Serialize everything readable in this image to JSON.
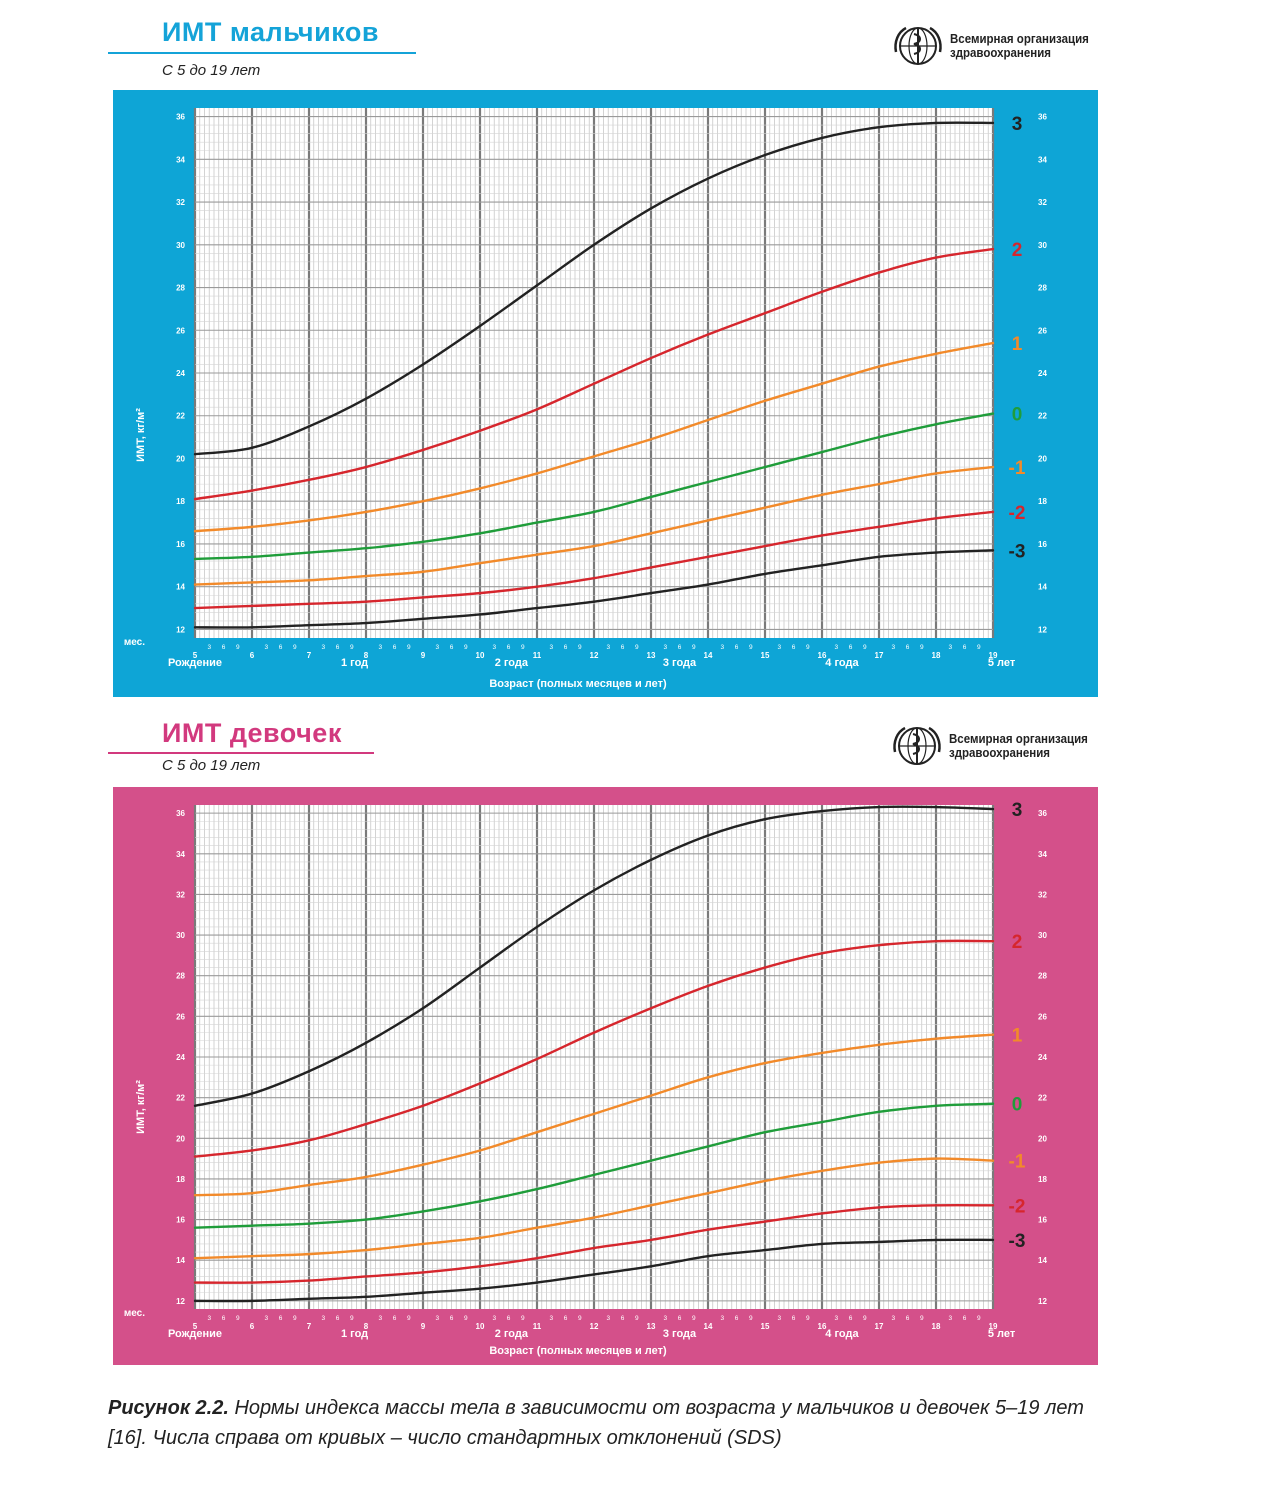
{
  "boys": {
    "title_prefix": "ИМТ",
    "title_suffix": "мальчиков",
    "subtitle": "С 5 до 19 лет",
    "who_line1": "Всемирная организация",
    "who_line2": "здравоохранения",
    "ylabel": "ИМТ, кг/м²",
    "xlabel": "Возраст (полных месяцев и лет)",
    "months_label": "мес.",
    "age_labels": [
      "Рождение",
      "1 год",
      "2 года",
      "3 года",
      "4 года",
      "5 лет"
    ],
    "colors": {
      "panel": "#0ea5d6",
      "title": "#14a3d8"
    }
  },
  "girls": {
    "title_prefix": "ИМТ",
    "title_suffix": "девочек",
    "subtitle": "С 5 до 19 лет",
    "who_line1": "Всемирная организация",
    "who_line2": "здравоохранения",
    "ylabel": "ИМТ, кг/м²",
    "xlabel": "Возраст (полных месяцев и лет)",
    "months_label": "мес.",
    "age_labels": [
      "Рождение",
      "1 год",
      "2 года",
      "3 года",
      "4 года",
      "5 лет"
    ],
    "colors": {
      "panel": "#d4508a",
      "title": "#d2397e"
    }
  },
  "caption": {
    "bold": "Рисунок 2.2.",
    "text": " Нормы индекса массы тела в зависимости от возраста у мальчиков и девочек 5–19 лет [16]. Числа справа от кривых – число стандартных отклонений (SDS)"
  },
  "chart_data": [
    {
      "type": "line",
      "chart": "boys",
      "title": "ИМТ мальчиков",
      "xlabel": "Возраст (полных месяцев и лет)",
      "ylabel": "ИМТ, кг/м²",
      "xlim": [
        5,
        19
      ],
      "ylim": [
        11.6,
        36.4
      ],
      "x_ticks": [
        5,
        6,
        7,
        8,
        9,
        10,
        11,
        12,
        13,
        14,
        15,
        16,
        17,
        18,
        19
      ],
      "y_ticks": [
        12,
        14,
        16,
        18,
        20,
        22,
        24,
        26,
        28,
        30,
        32,
        34,
        36
      ],
      "minor_ticks": [
        "3",
        "6",
        "9"
      ],
      "grid": true,
      "x": [
        5,
        6,
        7,
        8,
        9,
        10,
        11,
        12,
        13,
        14,
        15,
        16,
        17,
        18,
        19
      ],
      "series": [
        {
          "name": "3",
          "color": "#222222",
          "values": [
            20.2,
            20.5,
            21.5,
            22.8,
            24.4,
            26.2,
            28.1,
            30.0,
            31.7,
            33.1,
            34.2,
            35.0,
            35.5,
            35.7,
            35.7
          ]
        },
        {
          "name": "2",
          "color": "#d6262d",
          "values": [
            18.1,
            18.5,
            19.0,
            19.6,
            20.4,
            21.3,
            22.3,
            23.5,
            24.7,
            25.8,
            26.8,
            27.8,
            28.7,
            29.4,
            29.8
          ]
        },
        {
          "name": "1",
          "color": "#f28a2a",
          "values": [
            16.6,
            16.8,
            17.1,
            17.5,
            18.0,
            18.6,
            19.3,
            20.1,
            20.9,
            21.8,
            22.7,
            23.5,
            24.3,
            24.9,
            25.4
          ]
        },
        {
          "name": "0",
          "color": "#1f9d3a",
          "values": [
            15.3,
            15.4,
            15.6,
            15.8,
            16.1,
            16.5,
            17.0,
            17.5,
            18.2,
            18.9,
            19.6,
            20.3,
            21.0,
            21.6,
            22.1
          ]
        },
        {
          "name": "-1",
          "color": "#f28a2a",
          "values": [
            14.1,
            14.2,
            14.3,
            14.5,
            14.7,
            15.1,
            15.5,
            15.9,
            16.5,
            17.1,
            17.7,
            18.3,
            18.8,
            19.3,
            19.6
          ]
        },
        {
          "name": "-2",
          "color": "#d6262d",
          "values": [
            13.0,
            13.1,
            13.2,
            13.3,
            13.5,
            13.7,
            14.0,
            14.4,
            14.9,
            15.4,
            15.9,
            16.4,
            16.8,
            17.2,
            17.5
          ]
        },
        {
          "name": "-3",
          "color": "#222222",
          "values": [
            12.1,
            12.1,
            12.2,
            12.3,
            12.5,
            12.7,
            13.0,
            13.3,
            13.7,
            14.1,
            14.6,
            15.0,
            15.4,
            15.6,
            15.7
          ]
        }
      ]
    },
    {
      "type": "line",
      "chart": "girls",
      "title": "ИМТ девочек",
      "xlabel": "Возраст (полных месяцев и лет)",
      "ylabel": "ИМТ, кг/м²",
      "xlim": [
        5,
        19
      ],
      "ylim": [
        11.6,
        36.4
      ],
      "x_ticks": [
        5,
        6,
        7,
        8,
        9,
        10,
        11,
        12,
        13,
        14,
        15,
        16,
        17,
        18,
        19
      ],
      "y_ticks": [
        12,
        14,
        16,
        18,
        20,
        22,
        24,
        26,
        28,
        30,
        32,
        34,
        36
      ],
      "minor_ticks": [
        "3",
        "6",
        "9"
      ],
      "grid": true,
      "x": [
        5,
        6,
        7,
        8,
        9,
        10,
        11,
        12,
        13,
        14,
        15,
        16,
        17,
        18,
        19
      ],
      "series": [
        {
          "name": "3",
          "color": "#222222",
          "values": [
            21.6,
            22.2,
            23.3,
            24.7,
            26.4,
            28.4,
            30.4,
            32.2,
            33.7,
            34.9,
            35.7,
            36.1,
            36.3,
            36.3,
            36.2
          ]
        },
        {
          "name": "2",
          "color": "#d6262d",
          "values": [
            19.1,
            19.4,
            19.9,
            20.7,
            21.6,
            22.7,
            23.9,
            25.2,
            26.4,
            27.5,
            28.4,
            29.1,
            29.5,
            29.7,
            29.7
          ]
        },
        {
          "name": "1",
          "color": "#f28a2a",
          "values": [
            17.2,
            17.3,
            17.7,
            18.1,
            18.7,
            19.4,
            20.3,
            21.2,
            22.1,
            23.0,
            23.7,
            24.2,
            24.6,
            24.9,
            25.1
          ]
        },
        {
          "name": "0",
          "color": "#1f9d3a",
          "values": [
            15.6,
            15.7,
            15.8,
            16.0,
            16.4,
            16.9,
            17.5,
            18.2,
            18.9,
            19.6,
            20.3,
            20.8,
            21.3,
            21.6,
            21.7
          ]
        },
        {
          "name": "-1",
          "color": "#f28a2a",
          "values": [
            14.1,
            14.2,
            14.3,
            14.5,
            14.8,
            15.1,
            15.6,
            16.1,
            16.7,
            17.3,
            17.9,
            18.4,
            18.8,
            19.0,
            18.9
          ]
        },
        {
          "name": "-2",
          "color": "#d6262d",
          "values": [
            12.9,
            12.9,
            13.0,
            13.2,
            13.4,
            13.7,
            14.1,
            14.6,
            15.0,
            15.5,
            15.9,
            16.3,
            16.6,
            16.7,
            16.7
          ]
        },
        {
          "name": "-3",
          "color": "#222222",
          "values": [
            12.0,
            12.0,
            12.1,
            12.2,
            12.4,
            12.6,
            12.9,
            13.3,
            13.7,
            14.2,
            14.5,
            14.8,
            14.9,
            15.0,
            15.0
          ]
        }
      ]
    }
  ]
}
